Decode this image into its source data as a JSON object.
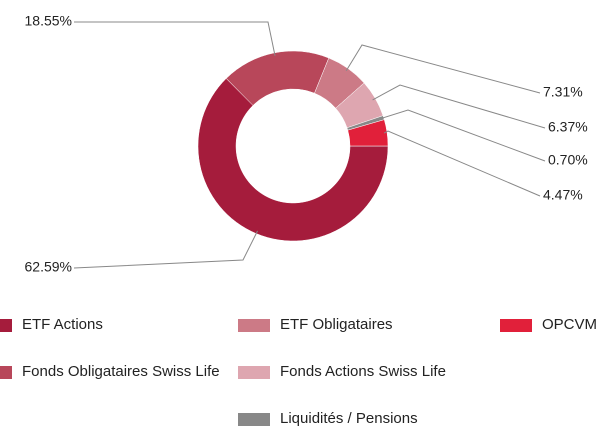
{
  "chart_data": {
    "type": "donut",
    "categories": [
      "ETF Actions",
      "Fonds Obligataires Swiss Life",
      "ETF Obligataires",
      "Fonds Actions Swiss Life",
      "Liquidités / Pensions",
      "OPCVM"
    ],
    "values": [
      62.59,
      18.55,
      7.31,
      6.37,
      0.7,
      4.47
    ],
    "value_labels": [
      "62.59%",
      "18.55%",
      "7.31%",
      "6.37%",
      "0.70%",
      "4.47%"
    ],
    "colors": [
      "#a51c3c",
      "#b8475a",
      "#cc7a86",
      "#dea6b0",
      "#888888",
      "#e1203a"
    ]
  }
}
